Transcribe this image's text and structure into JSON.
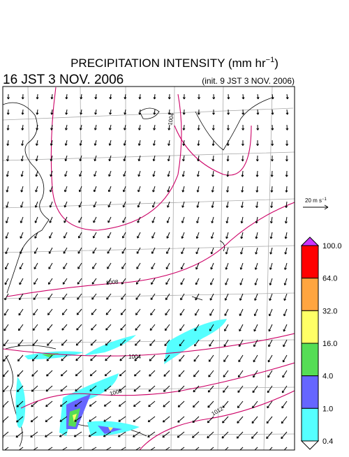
{
  "header": {
    "title": {
      "main": "PRECIPITATION INTENSITY (mm hr",
      "sup": "−1",
      "end": ")"
    },
    "valid_time": "16 JST 3 NOV. 2006",
    "init_time": "(init. 9 JST 3 NOV. 2006)"
  },
  "wind_scale": {
    "main": "20 m s",
    "sup": "−1"
  },
  "colorbar": {
    "labels": [
      "100.0",
      "64.0",
      "32.0",
      "16.0",
      "4.0",
      "1.0",
      "0.4"
    ],
    "colors": [
      "#ff0000",
      "#ffa540",
      "#ffff66",
      "#55dd55",
      "#6666ff",
      "#55ffff"
    ],
    "over_color": "#cc33ff",
    "under_color": "#ffffff"
  },
  "isobars": {
    "labels": [
      "1004",
      "1008",
      "1004",
      "1008",
      "1012"
    ]
  }
}
